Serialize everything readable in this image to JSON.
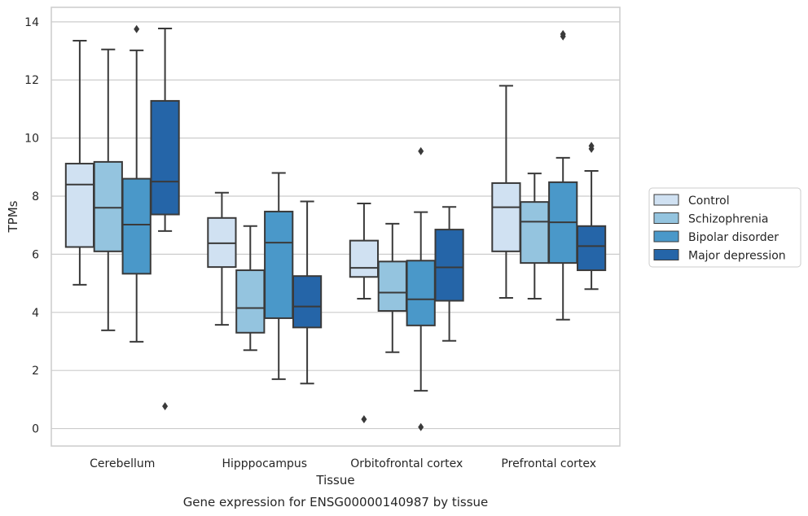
{
  "chart_data": {
    "type": "boxplot",
    "title": "",
    "caption": "Gene expression for ENSG00000140987 by tissue",
    "xlabel": "Tissue",
    "ylabel": "TPMs",
    "ylim": [
      -0.6,
      14.5
    ],
    "yticks": [
      0,
      2,
      4,
      6,
      8,
      10,
      12,
      14
    ],
    "grid": "horizontal",
    "legend_position": "right",
    "categories": [
      "Cerebellum",
      "Hipppocampus",
      "Orbitofrontal cortex",
      "Prefrontal cortex"
    ],
    "series": [
      {
        "name": "Control",
        "color": "#d0e1f2",
        "boxes": [
          {
            "whislo": 4.95,
            "q1": 6.25,
            "med": 8.4,
            "q3": 9.12,
            "whishi": 13.35,
            "fliers": []
          },
          {
            "whislo": 3.57,
            "q1": 5.56,
            "med": 6.38,
            "q3": 7.25,
            "whishi": 8.12,
            "fliers": []
          },
          {
            "whislo": 4.47,
            "q1": 5.22,
            "med": 5.53,
            "q3": 6.47,
            "whishi": 7.75,
            "fliers": [
              0.32
            ]
          },
          {
            "whislo": 4.5,
            "q1": 6.1,
            "med": 7.62,
            "q3": 8.45,
            "whishi": 11.8,
            "fliers": []
          }
        ]
      },
      {
        "name": "Schizophrenia",
        "color": "#94c4df",
        "boxes": [
          {
            "whislo": 3.38,
            "q1": 6.1,
            "med": 7.6,
            "q3": 9.18,
            "whishi": 13.05,
            "fliers": []
          },
          {
            "whislo": 2.7,
            "q1": 3.3,
            "med": 4.15,
            "q3": 5.45,
            "whishi": 6.97,
            "fliers": []
          },
          {
            "whislo": 2.63,
            "q1": 4.05,
            "med": 4.68,
            "q3": 5.75,
            "whishi": 7.05,
            "fliers": []
          },
          {
            "whislo": 4.47,
            "q1": 5.7,
            "med": 7.12,
            "q3": 7.8,
            "whishi": 8.78,
            "fliers": []
          }
        ]
      },
      {
        "name": "Bipolar disorder",
        "color": "#4a98c9",
        "boxes": [
          {
            "whislo": 2.99,
            "q1": 5.33,
            "med": 7.02,
            "q3": 8.6,
            "whishi": 13.02,
            "fliers": [
              13.75
            ]
          },
          {
            "whislo": 1.7,
            "q1": 3.8,
            "med": 6.4,
            "q3": 7.47,
            "whishi": 8.8,
            "fliers": []
          },
          {
            "whislo": 1.3,
            "q1": 3.55,
            "med": 4.45,
            "q3": 5.78,
            "whishi": 7.45,
            "fliers": [
              9.55,
              0.05
            ]
          },
          {
            "whislo": 3.75,
            "q1": 5.7,
            "med": 7.1,
            "q3": 8.48,
            "whishi": 9.32,
            "fliers": [
              13.5,
              13.58
            ]
          }
        ]
      },
      {
        "name": "Major depression",
        "color": "#2565a8",
        "boxes": [
          {
            "whislo": 6.8,
            "q1": 7.37,
            "med": 8.5,
            "q3": 11.28,
            "whishi": 13.77,
            "fliers": [
              0.77
            ]
          },
          {
            "whislo": 1.55,
            "q1": 3.48,
            "med": 4.2,
            "q3": 5.25,
            "whishi": 7.82,
            "fliers": []
          },
          {
            "whislo": 3.02,
            "q1": 4.4,
            "med": 5.55,
            "q3": 6.85,
            "whishi": 7.63,
            "fliers": []
          },
          {
            "whislo": 4.8,
            "q1": 5.45,
            "med": 6.28,
            "q3": 6.97,
            "whishi": 8.87,
            "fliers": [
              9.63,
              9.73
            ]
          }
        ]
      }
    ]
  }
}
